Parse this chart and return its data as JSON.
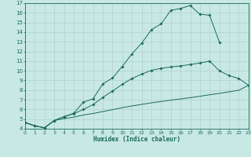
{
  "xlabel": "Humidex (Indice chaleur)",
  "bg_color": "#c8e8e4",
  "line_color": "#1a6b5a",
  "grid_color": "#a8ccc8",
  "xlim": [
    0,
    23
  ],
  "ylim": [
    4,
    17
  ],
  "xtick_vals": [
    0,
    1,
    2,
    3,
    4,
    5,
    6,
    7,
    8,
    9,
    10,
    11,
    12,
    13,
    14,
    15,
    16,
    17,
    18,
    19,
    20,
    21,
    22,
    23
  ],
  "ytick_vals": [
    4,
    5,
    6,
    7,
    8,
    9,
    10,
    11,
    12,
    13,
    14,
    15,
    16,
    17
  ],
  "curve1_x": [
    0,
    1,
    2,
    3,
    4,
    5,
    6,
    7,
    8,
    9,
    10,
    11,
    12,
    13,
    14,
    15,
    16,
    17,
    18,
    19,
    20
  ],
  "curve1_y": [
    4.65,
    4.3,
    4.1,
    4.85,
    5.25,
    5.6,
    6.75,
    7.1,
    8.65,
    9.25,
    10.45,
    11.75,
    12.85,
    14.25,
    14.85,
    16.25,
    16.45,
    16.75,
    15.85,
    15.75,
    12.95
  ],
  "curve2_x": [
    0,
    1,
    2,
    3,
    4,
    5,
    6,
    7,
    8,
    9,
    10,
    11,
    12,
    13,
    14,
    15,
    16,
    17,
    18,
    19,
    20,
    21,
    22,
    23
  ],
  "curve2_y": [
    4.65,
    4.3,
    4.1,
    4.85,
    5.25,
    5.55,
    6.0,
    6.5,
    7.25,
    7.9,
    8.6,
    9.2,
    9.65,
    10.05,
    10.25,
    10.4,
    10.5,
    10.65,
    10.8,
    11.0,
    10.0,
    9.5,
    9.2,
    8.5
  ],
  "curve3_x": [
    0,
    1,
    2,
    3,
    4,
    5,
    6,
    7,
    8,
    9,
    10,
    11,
    12,
    13,
    14,
    15,
    16,
    17,
    18,
    19,
    20,
    21,
    22,
    23
  ],
  "curve3_y": [
    4.65,
    4.3,
    4.1,
    4.85,
    5.05,
    5.2,
    5.42,
    5.58,
    5.78,
    5.98,
    6.18,
    6.36,
    6.52,
    6.68,
    6.82,
    6.96,
    7.08,
    7.22,
    7.36,
    7.52,
    7.66,
    7.82,
    7.98,
    8.5
  ]
}
